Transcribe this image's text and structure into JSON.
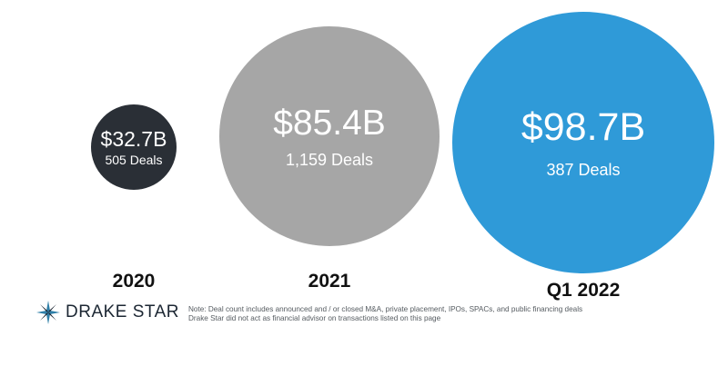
{
  "chart_data": {
    "type": "bubble",
    "categories": [
      "2020",
      "2021",
      "Q1 2022"
    ],
    "values": [
      32.7,
      85.4,
      98.7
    ],
    "unit": "$B",
    "deal_counts": [
      505,
      1159,
      387
    ],
    "value_labels": [
      "$32.7B",
      "$85.4B",
      "$98.7B"
    ],
    "deal_labels": [
      "505 Deals",
      "1,159 Deals",
      "387 Deals"
    ],
    "colors": [
      "#2a2f36",
      "#a6a6a6",
      "#2f9ad8"
    ]
  },
  "footer": {
    "logo_text": "DRAKE STAR",
    "note_line1": "Note: Deal count includes announced and / or closed M&A, private placement, IPOs, SPACs, and public financing deals",
    "note_line2": "Drake Star did not act as financial advisor on transactions listed on this page"
  }
}
